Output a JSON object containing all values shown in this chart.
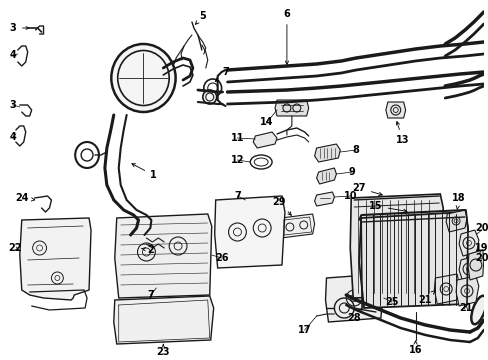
{
  "background": "#ffffff",
  "line_color": "#1a1a1a",
  "label_fontsize": 7.0,
  "label_color": "#000000",
  "figsize": [
    4.89,
    3.6
  ],
  "dpi": 100
}
